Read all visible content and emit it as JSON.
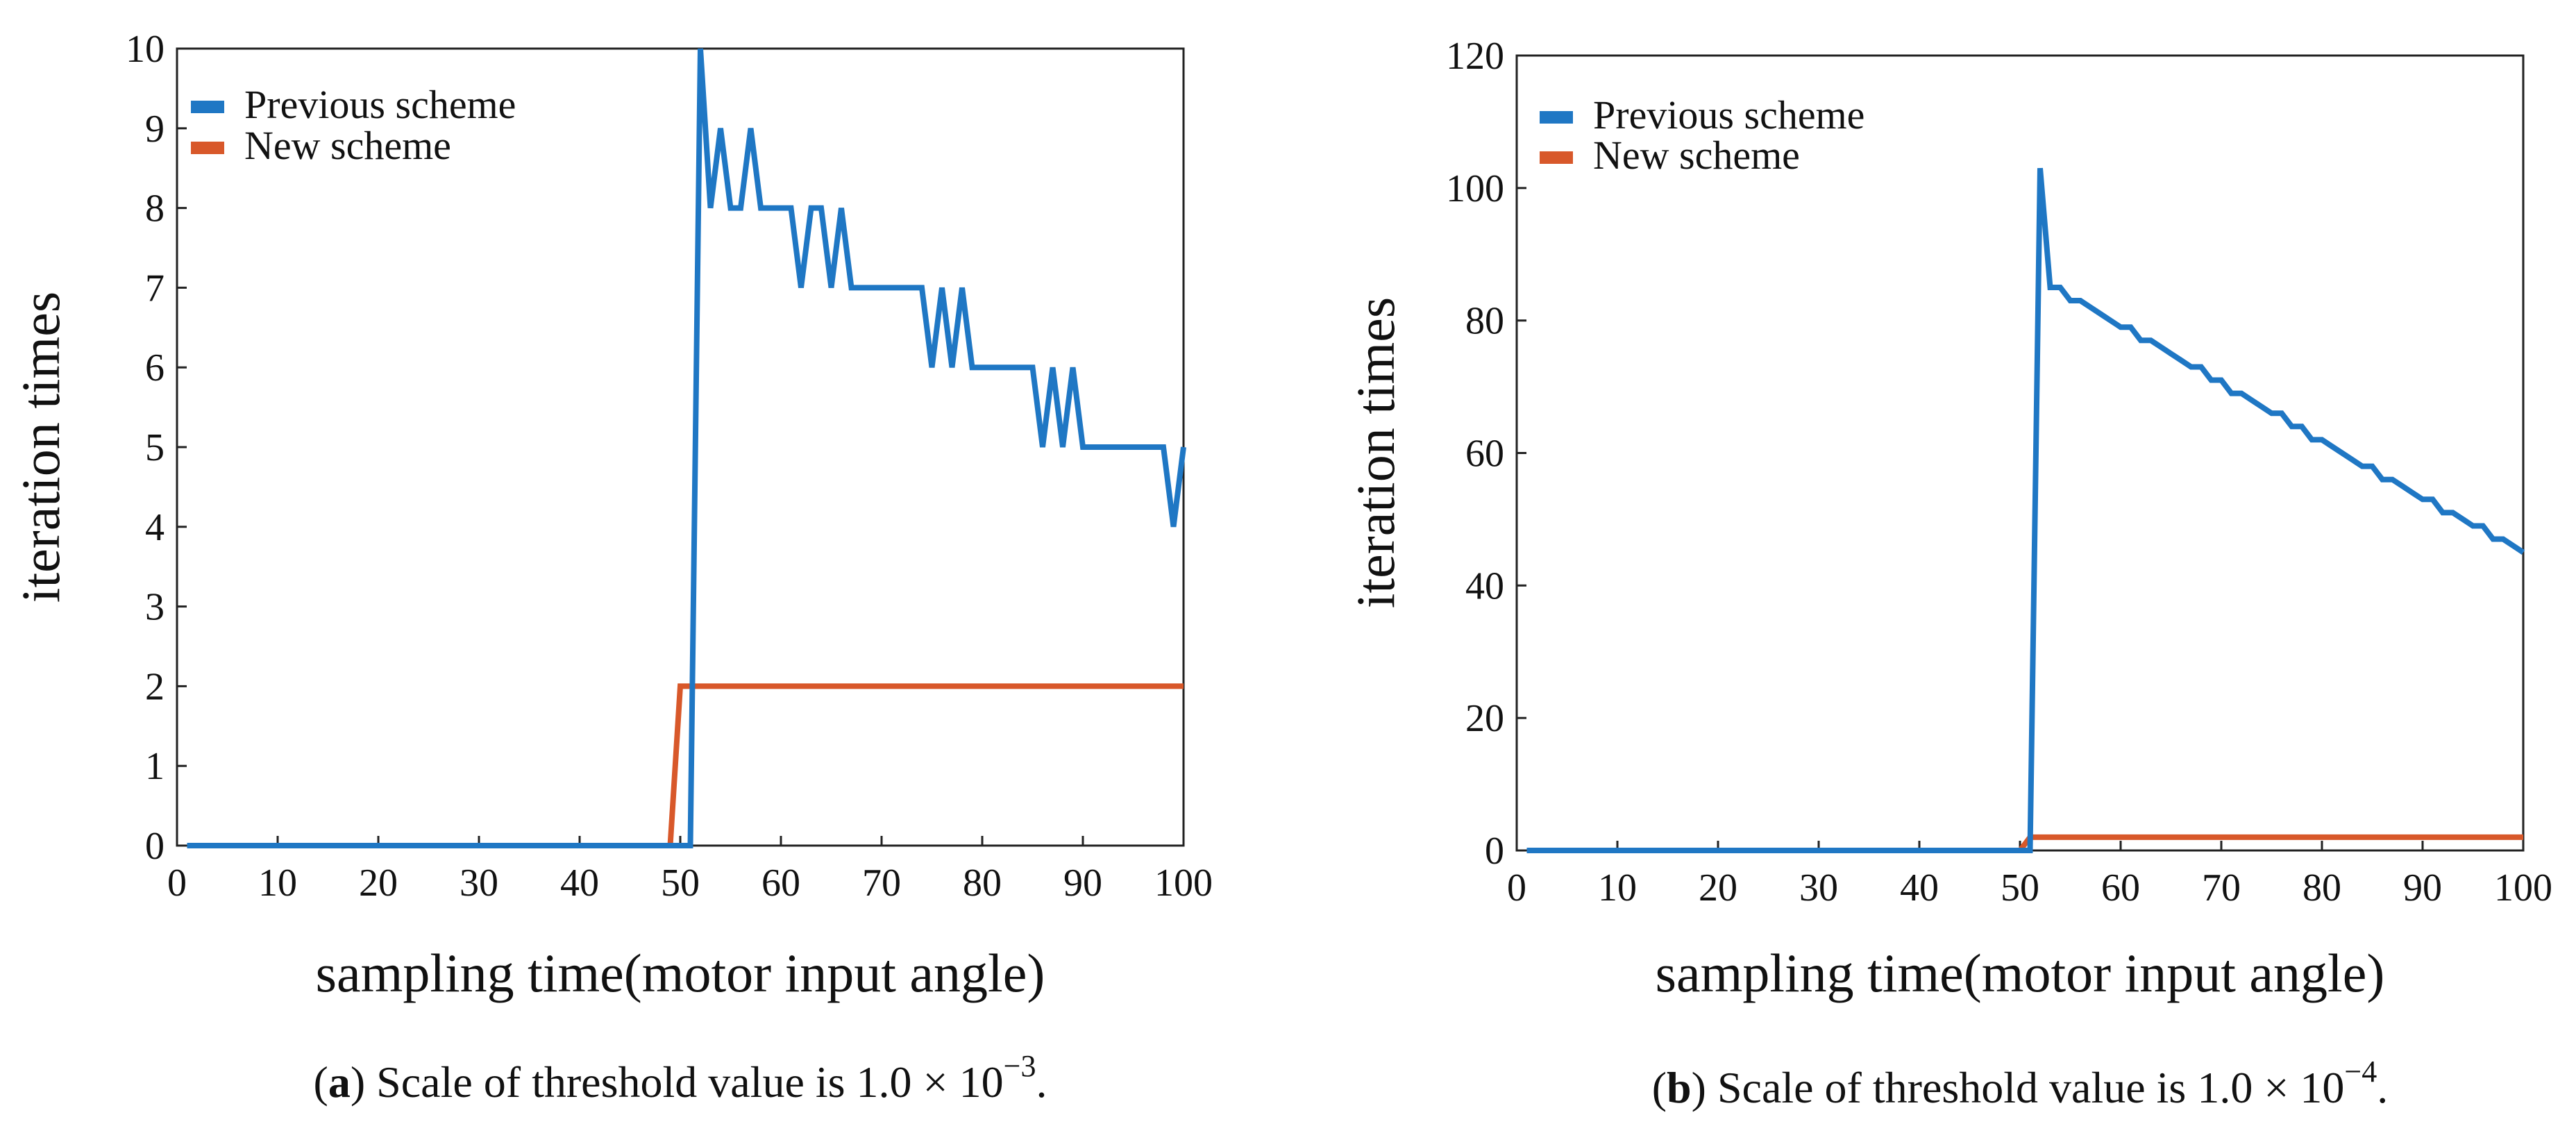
{
  "colors": {
    "previous": "#1f77c4",
    "new": "#d8582a"
  },
  "charts": [
    {
      "chart_data": {
        "type": "line",
        "xlabel": "sampling time(motor input angle)",
        "ylabel": "iteration times",
        "xlim": [
          0,
          100
        ],
        "ylim": [
          0,
          10
        ],
        "xticks": [
          "0",
          "10",
          "20",
          "30",
          "40",
          "50",
          "60",
          "70",
          "80",
          "90",
          "100"
        ],
        "yticks": [
          "0",
          "1",
          "2",
          "3",
          "4",
          "5",
          "6",
          "7",
          "8",
          "9",
          "10"
        ],
        "legend_position": "top-left",
        "grid": false,
        "series": [
          {
            "name": "Previous scheme",
            "color": "#1f77c4",
            "x": [
              1,
              50,
              51,
              52,
              53,
              54,
              55,
              56,
              57,
              58,
              59,
              60,
              61,
              62,
              63,
              64,
              65,
              66,
              67,
              68,
              69,
              70,
              71,
              72,
              73,
              74,
              75,
              76,
              77,
              78,
              79,
              80,
              81,
              82,
              83,
              84,
              85,
              86,
              87,
              88,
              89,
              90,
              91,
              92,
              93,
              94,
              95,
              96,
              97,
              98,
              99,
              100
            ],
            "y": [
              0,
              0,
              0,
              10,
              8,
              9,
              8,
              8,
              9,
              8,
              8,
              8,
              8,
              7,
              8,
              8,
              7,
              8,
              7,
              7,
              7,
              7,
              7,
              7,
              7,
              7,
              6,
              7,
              6,
              7,
              6,
              6,
              6,
              6,
              6,
              6,
              6,
              5,
              6,
              5,
              6,
              5,
              5,
              5,
              5,
              5,
              5,
              5,
              5,
              5,
              4,
              5
            ]
          },
          {
            "name": "New scheme",
            "color": "#d8582a",
            "x": [
              1,
              49,
              50,
              100
            ],
            "y": [
              0,
              0,
              2,
              2
            ]
          }
        ]
      },
      "caption": {
        "label": "a",
        "text": ") Scale of threshold value is 1.0 × 10",
        "exponent": "−3",
        "end": "."
      }
    },
    {
      "chart_data": {
        "type": "line",
        "xlabel": "sampling time(motor input angle)",
        "ylabel": "iteration times",
        "xlim": [
          0,
          100
        ],
        "ylim": [
          0,
          120
        ],
        "xticks": [
          "0",
          "10",
          "20",
          "30",
          "40",
          "50",
          "60",
          "70",
          "80",
          "90",
          "100"
        ],
        "yticks": [
          "0",
          "20",
          "40",
          "60",
          "80",
          "100",
          "120"
        ],
        "legend_position": "top-left",
        "grid": false,
        "series": [
          {
            "name": "Previous scheme",
            "color": "#1f77c4",
            "x": [
              1,
              50,
              51,
              52,
              53,
              54,
              55,
              56,
              57,
              58,
              59,
              60,
              61,
              62,
              63,
              64,
              65,
              66,
              67,
              68,
              69,
              70,
              71,
              72,
              73,
              74,
              75,
              76,
              77,
              78,
              79,
              80,
              81,
              82,
              83,
              84,
              85,
              86,
              87,
              88,
              89,
              90,
              91,
              92,
              93,
              94,
              95,
              96,
              97,
              98,
              99,
              100
            ],
            "y": [
              0,
              0,
              0,
              103,
              85,
              85,
              83,
              83,
              82,
              81,
              80,
              79,
              79,
              77,
              77,
              76,
              75,
              74,
              73,
              73,
              71,
              71,
              69,
              69,
              68,
              67,
              66,
              66,
              64,
              64,
              62,
              62,
              61,
              60,
              59,
              58,
              58,
              56,
              56,
              55,
              54,
              53,
              53,
              51,
              51,
              50,
              49,
              49,
              47,
              47,
              46,
              45
            ]
          },
          {
            "name": "New scheme",
            "color": "#d8582a",
            "x": [
              1,
              50,
              51,
              100
            ],
            "y": [
              0,
              0,
              2,
              2
            ]
          }
        ]
      },
      "caption": {
        "label": "b",
        "text": ") Scale of threshold value is 1.0 × 10",
        "exponent": "−4",
        "end": "."
      }
    }
  ]
}
